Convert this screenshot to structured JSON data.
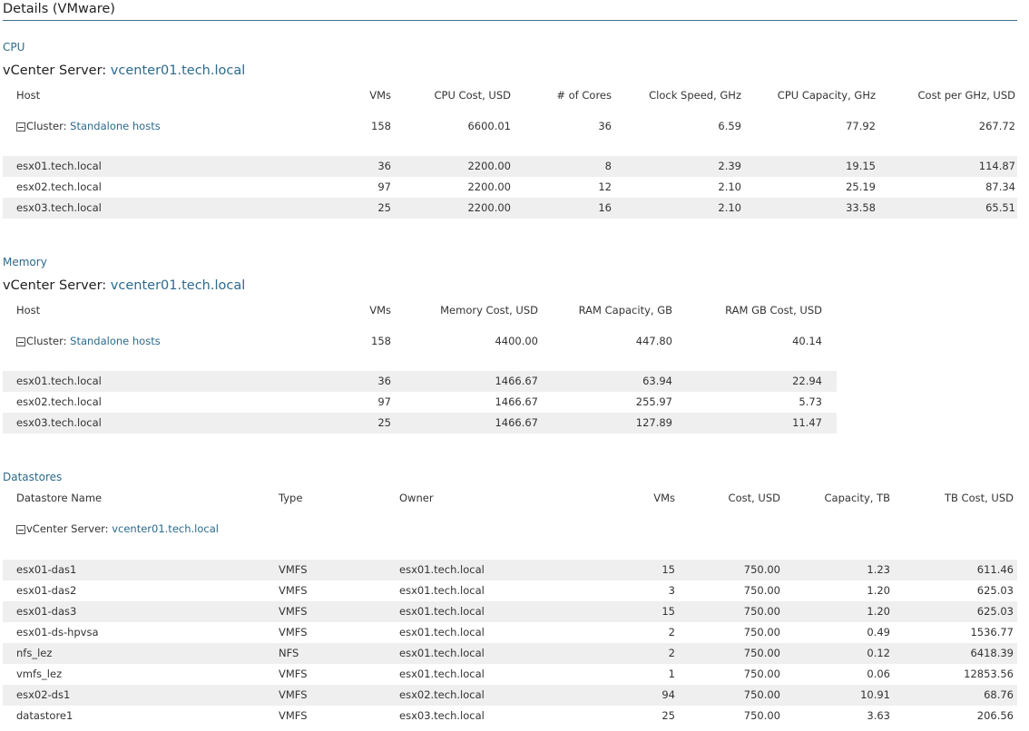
{
  "page": {
    "title": "Details (VMware)"
  },
  "cpu": {
    "section_label": "CPU",
    "server_prefix": "vCenter Server:",
    "server_name": "vcenter01.tech.local",
    "headers": [
      "Host",
      "VMs",
      "CPU Cost, USD",
      "# of Cores",
      "Clock Speed, GHz",
      "CPU Capacity, GHz",
      "Cost per GHz, USD"
    ],
    "cluster": {
      "prefix": "Cluster:",
      "name": "Standalone hosts",
      "vms": "158",
      "cost": "6600.01",
      "cores": "36",
      "clock": "6.59",
      "capacity": "77.92",
      "cost_per": "267.72"
    },
    "rows": [
      {
        "host": "esx01.tech.local",
        "vms": "36",
        "cost": "2200.00",
        "cores": "8",
        "clock": "2.39",
        "capacity": "19.15",
        "cost_per": "114.87"
      },
      {
        "host": "esx02.tech.local",
        "vms": "97",
        "cost": "2200.00",
        "cores": "12",
        "clock": "2.10",
        "capacity": "25.19",
        "cost_per": "87.34"
      },
      {
        "host": "esx03.tech.local",
        "vms": "25",
        "cost": "2200.00",
        "cores": "16",
        "clock": "2.10",
        "capacity": "33.58",
        "cost_per": "65.51"
      }
    ]
  },
  "memory": {
    "section_label": "Memory",
    "server_prefix": "vCenter Server:",
    "server_name": "vcenter01.tech.local",
    "headers": [
      "Host",
      "VMs",
      "Memory Cost, USD",
      "RAM Capacity, GB",
      "RAM GB Cost, USD"
    ],
    "cluster": {
      "prefix": "Cluster:",
      "name": "Standalone hosts",
      "vms": "158",
      "cost": "4400.00",
      "capacity": "447.80",
      "gb_cost": "40.14"
    },
    "rows": [
      {
        "host": "esx01.tech.local",
        "vms": "36",
        "cost": "1466.67",
        "capacity": "63.94",
        "gb_cost": "22.94"
      },
      {
        "host": "esx02.tech.local",
        "vms": "97",
        "cost": "1466.67",
        "capacity": "255.97",
        "gb_cost": "5.73"
      },
      {
        "host": "esx03.tech.local",
        "vms": "25",
        "cost": "1466.67",
        "capacity": "127.89",
        "gb_cost": "11.47"
      }
    ]
  },
  "datastores": {
    "section_label": "Datastores",
    "headers": [
      "Datastore Name",
      "Type",
      "Owner",
      "VMs",
      "Cost, USD",
      "Capacity, TB",
      "TB Cost, USD"
    ],
    "group": {
      "prefix": "vCenter Server:",
      "name": "vcenter01.tech.local"
    },
    "rows": [
      {
        "name": "esx01-das1",
        "type": "VMFS",
        "owner": "esx01.tech.local",
        "vms": "15",
        "cost": "750.00",
        "capacity": "1.23",
        "tb_cost": "611.46"
      },
      {
        "name": "esx01-das2",
        "type": "VMFS",
        "owner": "esx01.tech.local",
        "vms": "3",
        "cost": "750.00",
        "capacity": "1.20",
        "tb_cost": "625.03"
      },
      {
        "name": "esx01-das3",
        "type": "VMFS",
        "owner": "esx01.tech.local",
        "vms": "15",
        "cost": "750.00",
        "capacity": "1.20",
        "tb_cost": "625.03"
      },
      {
        "name": "esx01-ds-hpvsa",
        "type": "VMFS",
        "owner": "esx01.tech.local",
        "vms": "2",
        "cost": "750.00",
        "capacity": "0.49",
        "tb_cost": "1536.77"
      },
      {
        "name": "nfs_lez",
        "type": "NFS",
        "owner": "esx01.tech.local",
        "vms": "2",
        "cost": "750.00",
        "capacity": "0.12",
        "tb_cost": "6418.39"
      },
      {
        "name": "vmfs_lez",
        "type": "VMFS",
        "owner": "esx01.tech.local",
        "vms": "1",
        "cost": "750.00",
        "capacity": "0.06",
        "tb_cost": "12853.56"
      },
      {
        "name": "esx02-ds1",
        "type": "VMFS",
        "owner": "esx02.tech.local",
        "vms": "94",
        "cost": "750.00",
        "capacity": "10.91",
        "tb_cost": "68.76"
      },
      {
        "name": "datastore1",
        "type": "VMFS",
        "owner": "esx03.tech.local",
        "vms": "25",
        "cost": "750.00",
        "capacity": "3.63",
        "tb_cost": "206.56"
      }
    ]
  }
}
